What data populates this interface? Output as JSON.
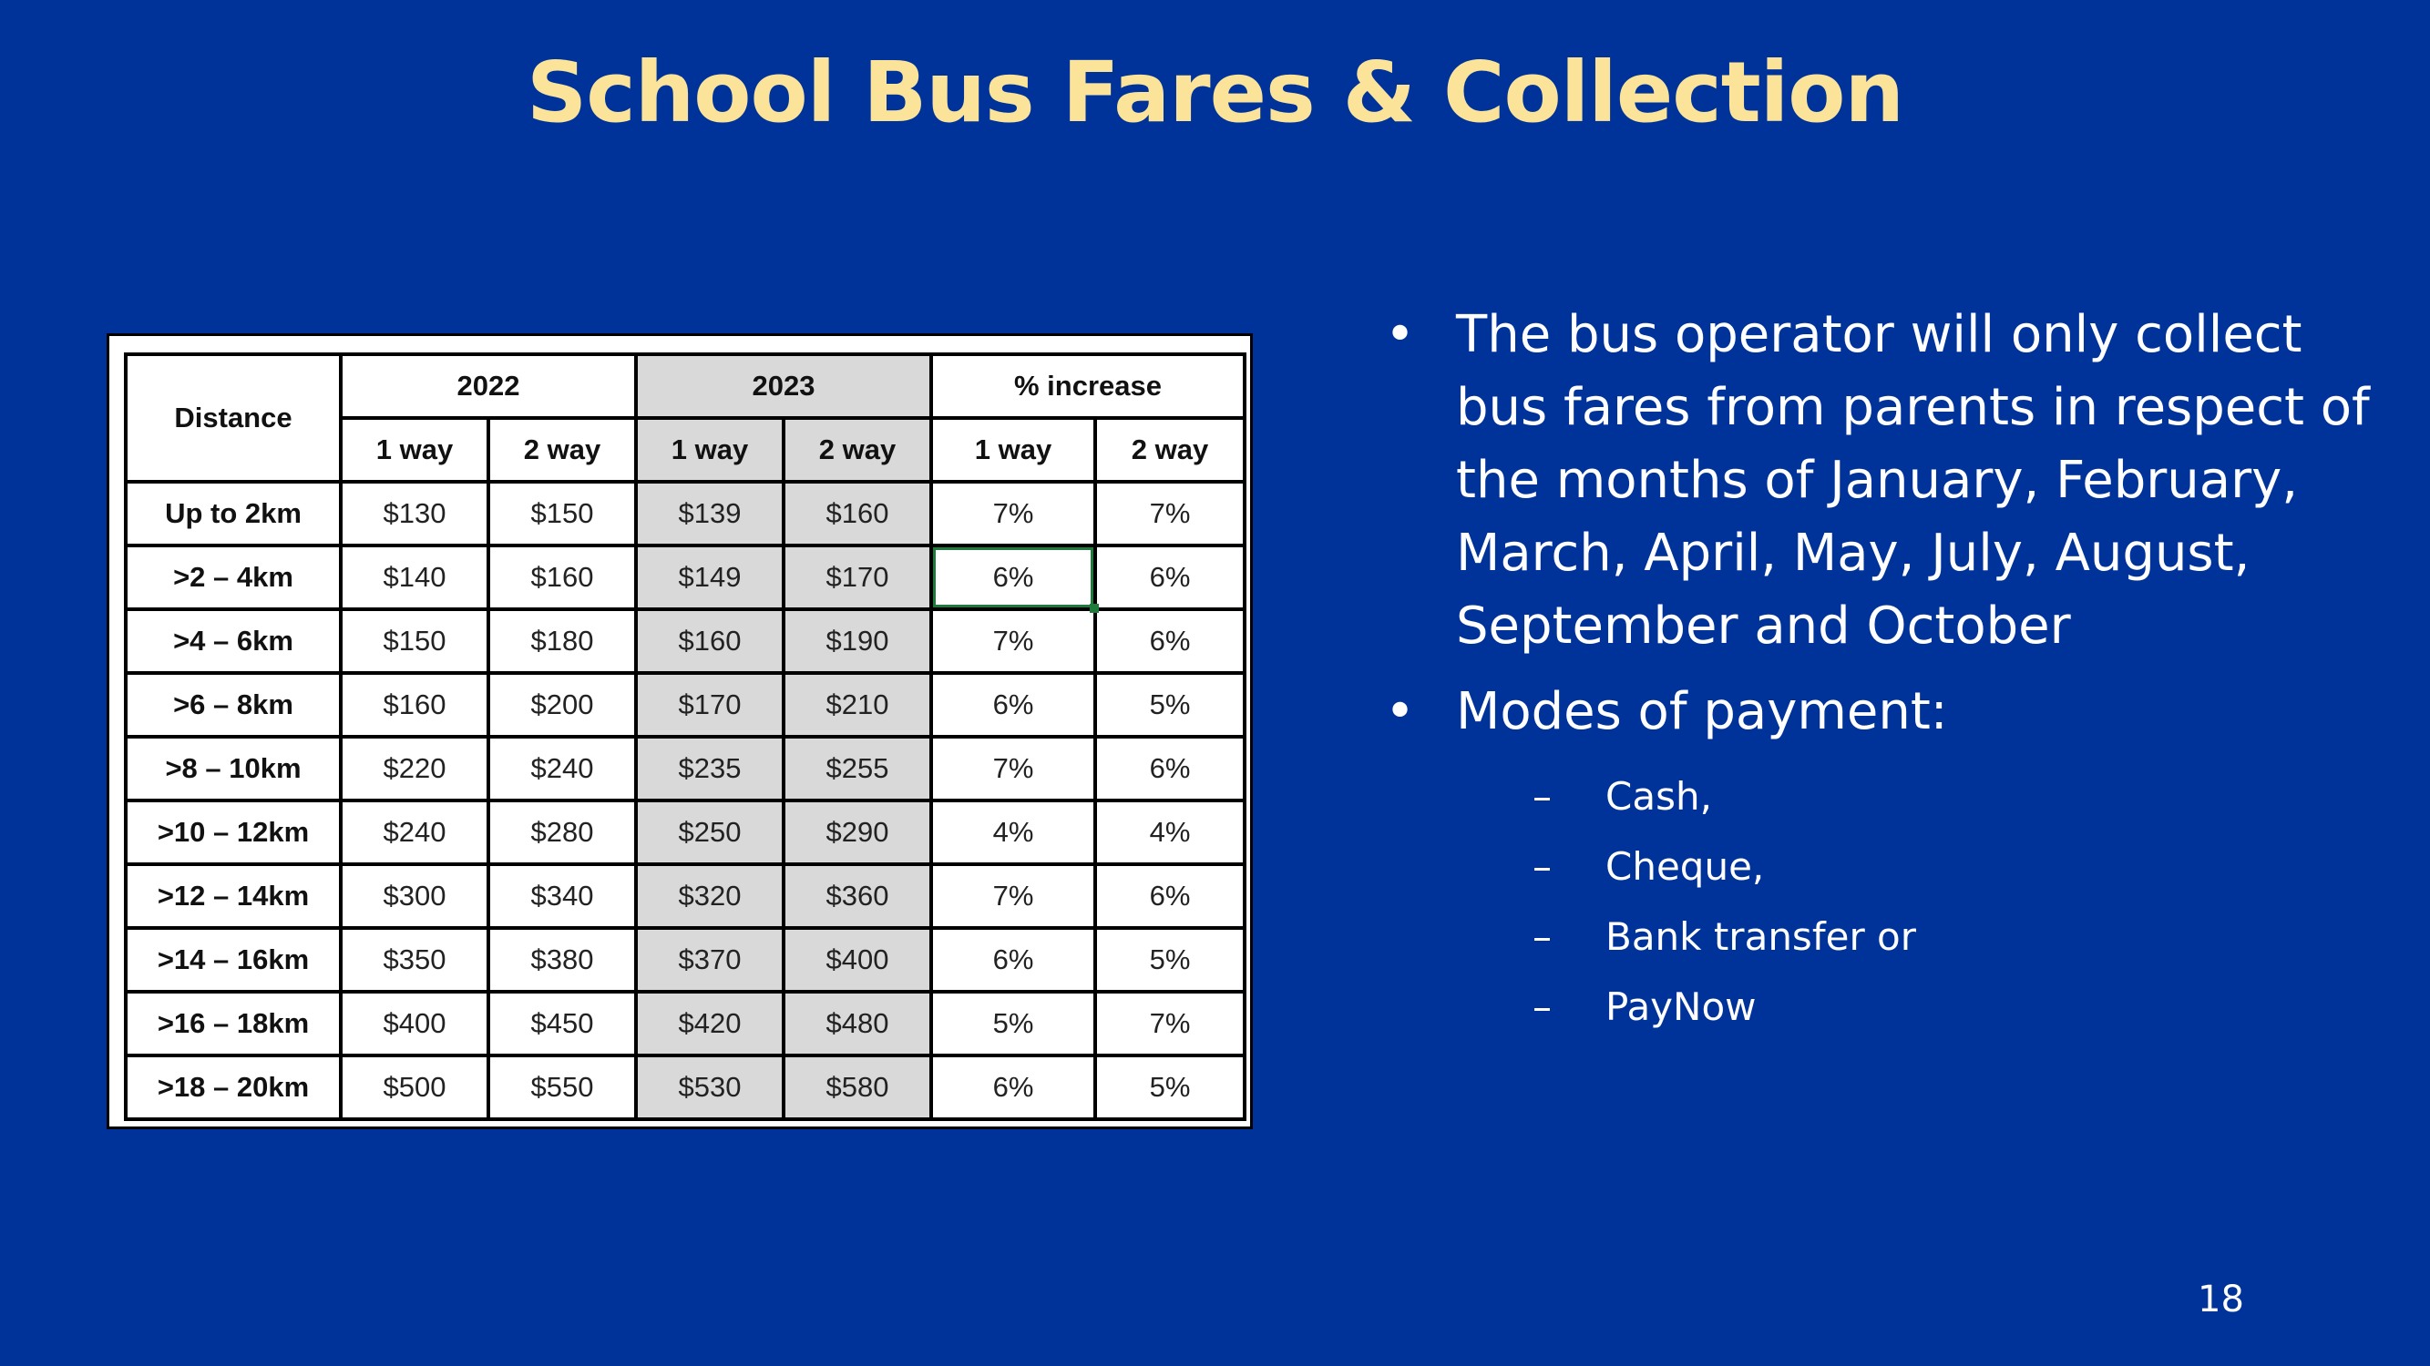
{
  "title": "School Bus Fares & Collection",
  "table": {
    "distance_header": "Distance",
    "year_headers": [
      "2022",
      "2023",
      "% increase"
    ],
    "sub_headers": [
      "1 way",
      "2 way",
      "1 way",
      "2 way",
      "1 way",
      "2 way"
    ],
    "rows": [
      [
        "Up to 2km",
        "$130",
        "$150",
        "$139",
        "$160",
        "7%",
        "7%"
      ],
      [
        ">2 – 4km",
        "$140",
        "$160",
        "$149",
        "$170",
        "6%",
        "6%"
      ],
      [
        ">4 – 6km",
        "$150",
        "$180",
        "$160",
        "$190",
        "7%",
        "6%"
      ],
      [
        ">6 – 8km",
        "$160",
        "$200",
        "$170",
        "$210",
        "6%",
        "5%"
      ],
      [
        ">8 – 10km",
        "$220",
        "$240",
        "$235",
        "$255",
        "7%",
        "6%"
      ],
      [
        ">10 – 12km",
        "$240",
        "$280",
        "$250",
        "$290",
        "4%",
        "4%"
      ],
      [
        ">12 – 14km",
        "$300",
        "$340",
        "$320",
        "$360",
        "7%",
        "6%"
      ],
      [
        ">14 – 16km",
        "$350",
        "$380",
        "$370",
        "$400",
        "6%",
        "5%"
      ],
      [
        ">16 – 18km",
        "$400",
        "$450",
        "$420",
        "$480",
        "5%",
        "7%"
      ],
      [
        ">18 – 20km",
        "$500",
        "$550",
        "$530",
        "$580",
        "6%",
        "5%"
      ]
    ]
  },
  "bullets": {
    "item1": "The bus operator will only collect bus fares from parents in respect of the months of January, February, March, April, May, July, August, September and October",
    "item2": "Modes of payment:",
    "payment_modes": [
      "Cash,",
      "Cheque,",
      "Bank transfer or",
      "PayNow"
    ]
  },
  "page_number": "18",
  "colors": {
    "background": "#00339a",
    "title": "#fbe49a",
    "highlight_2023": "#d9d9d9",
    "selection": "#1e7b3c"
  }
}
